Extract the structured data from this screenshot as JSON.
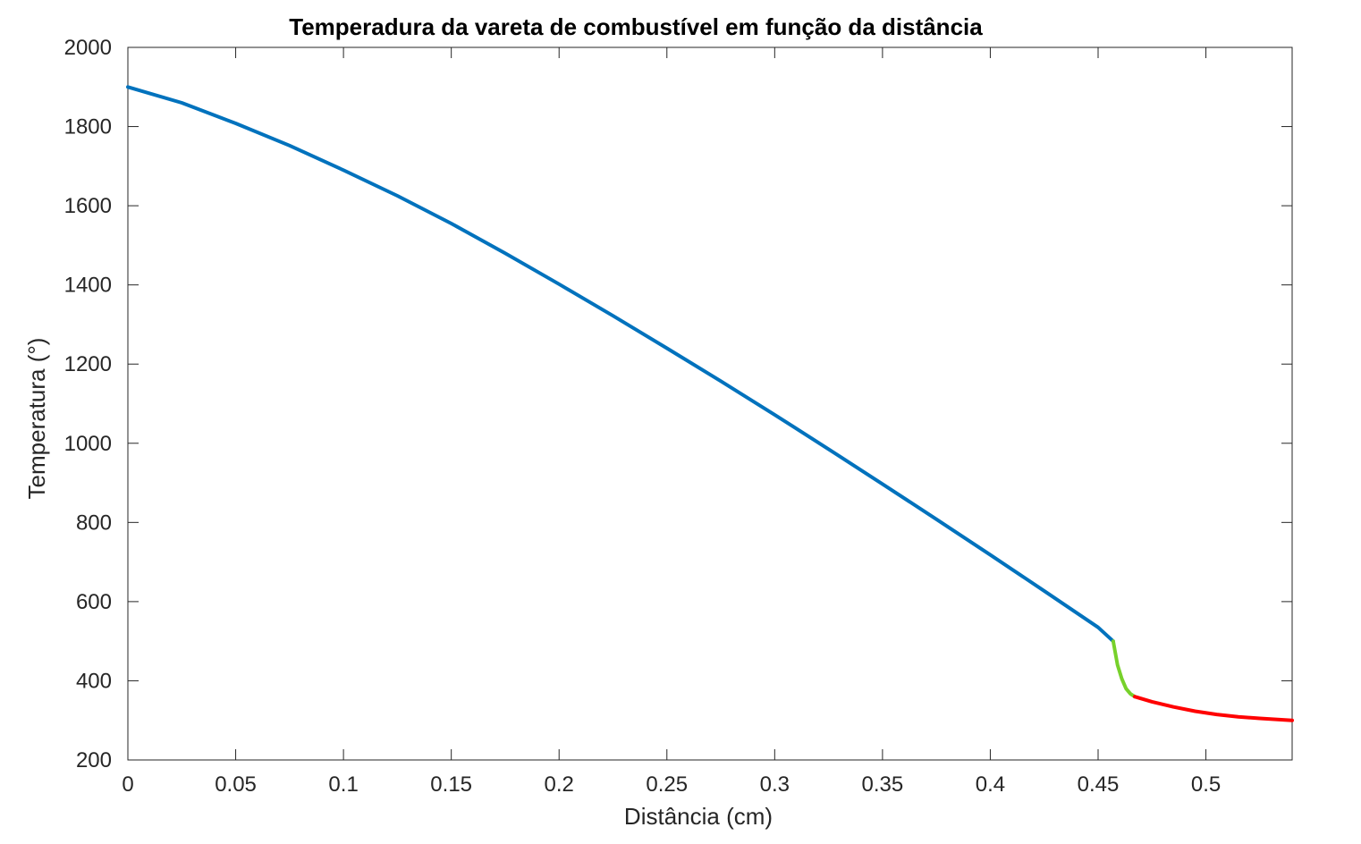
{
  "chart_data": {
    "type": "line",
    "title": "Temperadura da vareta de combustível em função da distância",
    "xlabel": "Distância (cm)",
    "ylabel": "Temperatura (°)",
    "xlim": [
      0,
      0.54
    ],
    "ylim": [
      200,
      2000
    ],
    "xticks": [
      0,
      0.05,
      0.1,
      0.15,
      0.2,
      0.25,
      0.3,
      0.35,
      0.4,
      0.45,
      0.5
    ],
    "xtick_labels": [
      "0",
      "0.05",
      "0.1",
      "0.15",
      "0.2",
      "0.25",
      "0.3",
      "0.35",
      "0.4",
      "0.45",
      "0.5"
    ],
    "yticks": [
      200,
      400,
      600,
      800,
      1000,
      1200,
      1400,
      1600,
      1800,
      2000
    ],
    "ytick_labels": [
      "200",
      "400",
      "600",
      "800",
      "1000",
      "1200",
      "1400",
      "1600",
      "1800",
      "2000"
    ],
    "grid": false,
    "series": [
      {
        "color": "#0072BD",
        "x": [
          0,
          0.025,
          0.05,
          0.075,
          0.1,
          0.125,
          0.15,
          0.175,
          0.2,
          0.225,
          0.25,
          0.275,
          0.3,
          0.325,
          0.35,
          0.375,
          0.4,
          0.425,
          0.45,
          0.457
        ],
        "y": [
          1900,
          1860,
          1808,
          1752,
          1690,
          1625,
          1555,
          1480,
          1402,
          1322,
          1240,
          1157,
          1072,
          985,
          897,
          808,
          718,
          627,
          535,
          500
        ]
      },
      {
        "color": "#77D12B",
        "x": [
          0.457,
          0.459,
          0.461,
          0.463,
          0.465,
          0.467
        ],
        "y": [
          500,
          440,
          405,
          380,
          367,
          360
        ]
      },
      {
        "color": "#FF0000",
        "x": [
          0.467,
          0.475,
          0.485,
          0.495,
          0.505,
          0.515,
          0.525,
          0.54
        ],
        "y": [
          360,
          347,
          334,
          323,
          315,
          309,
          305,
          300
        ]
      }
    ]
  }
}
